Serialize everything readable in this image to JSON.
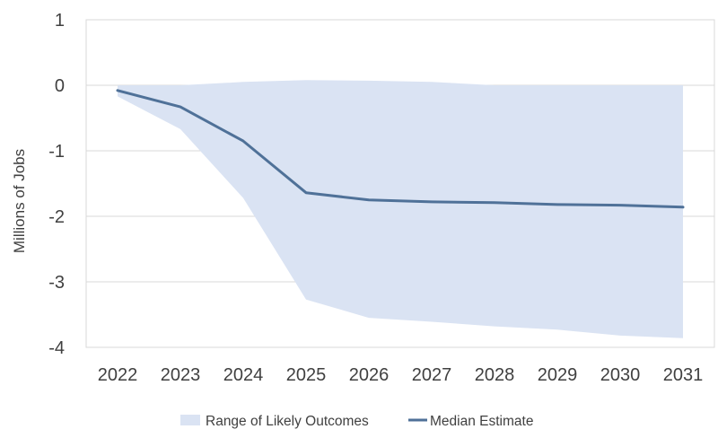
{
  "chart_data": {
    "type": "area",
    "title": "",
    "xlabel": "",
    "ylabel": "Millions of Jobs",
    "x": [
      "2022",
      "2023",
      "2024",
      "2025",
      "2026",
      "2027",
      "2028",
      "2029",
      "2030",
      "2031"
    ],
    "ylim": [
      -4,
      1
    ],
    "yticks": [
      "1",
      "0",
      "-1",
      "-2",
      "-3",
      "-4"
    ],
    "ytick_values": [
      1,
      0,
      -1,
      -2,
      -3,
      -4
    ],
    "grid": true,
    "legend_position": "bottom",
    "series": [
      {
        "name": "Range of Likely Outcomes",
        "kind": "band",
        "upper": [
          0.0,
          0.0,
          0.05,
          0.08,
          0.07,
          0.05,
          0.0,
          0.0,
          0.0,
          0.0
        ],
        "lower": [
          -0.17,
          -0.67,
          -1.72,
          -3.27,
          -3.55,
          -3.61,
          -3.68,
          -3.73,
          -3.82,
          -3.86
        ],
        "color": "#dae3f3"
      },
      {
        "name": "Median Estimate",
        "kind": "line",
        "values": [
          -0.08,
          -0.33,
          -0.85,
          -1.64,
          -1.75,
          -1.78,
          -1.79,
          -1.82,
          -1.83,
          -1.86
        ],
        "color": "#4f7198"
      }
    ]
  }
}
